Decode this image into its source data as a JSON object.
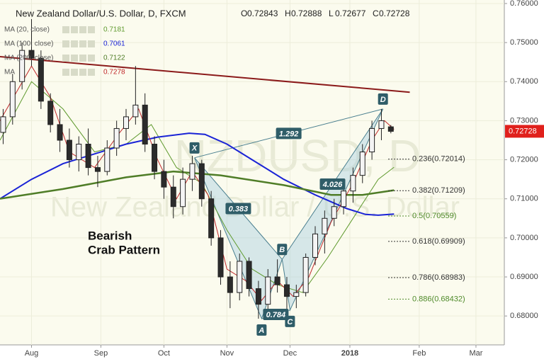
{
  "chart_data": {
    "type": "candlestick",
    "title": "New Zealand Dollar/U.S. Dollar, D, FXCM",
    "ohlc_labels": [
      "O",
      "H",
      "L",
      "C"
    ],
    "ohlc": [
      0.72843,
      0.72888,
      0.72677,
      0.72728
    ],
    "watermark": [
      "NZDUSD, D",
      "New Zealand Dollar / U.S. Dollar"
    ],
    "annotation": [
      "Bearish",
      "Crab Pattern"
    ],
    "xlim": [
      -10,
      150
    ],
    "xticks": [
      {
        "value": 0,
        "label": "Aug"
      },
      {
        "value": 22,
        "label": "Sep"
      },
      {
        "value": 42,
        "label": "Oct"
      },
      {
        "value": 62,
        "label": "Nov"
      },
      {
        "value": 82,
        "label": "Dec"
      },
      {
        "value": 101,
        "label": "2018"
      },
      {
        "value": 123,
        "label": "Feb"
      },
      {
        "value": 141,
        "label": "Mar"
      }
    ],
    "ylim": [
      0.6726,
      0.7609
    ],
    "yticks": [
      {
        "value": 0.68,
        "label": "0.68000"
      },
      {
        "value": 0.69,
        "label": "0.69000"
      },
      {
        "value": 0.7,
        "label": "0.70000"
      },
      {
        "value": 0.71,
        "label": "0.71000"
      },
      {
        "value": 0.72,
        "label": "0.72000"
      },
      {
        "value": 0.73,
        "label": "0.73000"
      },
      {
        "value": 0.74,
        "label": "0.74000"
      },
      {
        "value": 0.75,
        "label": "0.75000"
      },
      {
        "value": 0.76,
        "label": "0.76000"
      }
    ],
    "grid": true,
    "up_color": "#f4f4f4",
    "down_color": "#2b2b2b",
    "x": [
      -9,
      -6,
      -3,
      0,
      3,
      6,
      9,
      12,
      15,
      18,
      21,
      24,
      27,
      30,
      33,
      36,
      39,
      42,
      45,
      48,
      51,
      54,
      57,
      60,
      63,
      66,
      69,
      72,
      75,
      78,
      81,
      84,
      87,
      90,
      93,
      96,
      99,
      102,
      105,
      108,
      111,
      114
    ],
    "open": [
      0.727,
      0.731,
      0.74,
      0.748,
      0.746,
      0.735,
      0.729,
      0.725,
      0.72,
      0.724,
      0.718,
      0.717,
      0.723,
      0.728,
      0.731,
      0.734,
      0.724,
      0.717,
      0.713,
      0.708,
      0.715,
      0.719,
      0.71,
      0.7,
      0.69,
      0.686,
      0.694,
      0.687,
      0.683,
      0.69,
      0.688,
      0.685,
      0.686,
      0.695,
      0.701,
      0.705,
      0.708,
      0.712,
      0.716,
      0.722,
      0.728,
      0.72843
    ],
    "high": [
      0.733,
      0.742,
      0.75,
      0.756,
      0.748,
      0.737,
      0.733,
      0.728,
      0.726,
      0.728,
      0.721,
      0.725,
      0.73,
      0.733,
      0.744,
      0.737,
      0.726,
      0.72,
      0.716,
      0.718,
      0.721,
      0.72,
      0.712,
      0.702,
      0.694,
      0.696,
      0.695,
      0.689,
      0.692,
      0.6945,
      0.69,
      0.688,
      0.696,
      0.703,
      0.707,
      0.71,
      0.713,
      0.718,
      0.724,
      0.73,
      0.733,
      0.72888
    ],
    "low": [
      0.724,
      0.729,
      0.738,
      0.744,
      0.733,
      0.727,
      0.722,
      0.718,
      0.717,
      0.716,
      0.713,
      0.716,
      0.721,
      0.725,
      0.729,
      0.722,
      0.715,
      0.71,
      0.705,
      0.706,
      0.712,
      0.708,
      0.698,
      0.688,
      0.682,
      0.684,
      0.685,
      0.6793,
      0.681,
      0.686,
      0.6815,
      0.682,
      0.685,
      0.693,
      0.696,
      0.703,
      0.706,
      0.709,
      0.714,
      0.72,
      0.725,
      0.72677
    ],
    "close": [
      0.731,
      0.74,
      0.748,
      0.746,
      0.735,
      0.729,
      0.725,
      0.72,
      0.724,
      0.718,
      0.717,
      0.723,
      0.728,
      0.731,
      0.734,
      0.724,
      0.717,
      0.713,
      0.708,
      0.715,
      0.719,
      0.71,
      0.7,
      0.69,
      0.686,
      0.694,
      0.687,
      0.683,
      0.69,
      0.688,
      0.685,
      0.686,
      0.695,
      0.701,
      0.705,
      0.708,
      0.712,
      0.716,
      0.722,
      0.728,
      0.73,
      0.72728
    ],
    "series": [
      {
        "name": "MA (20, close)",
        "current": 0.7181,
        "color": "#5f9a2e",
        "width": 1,
        "x": [
          -10,
          0,
          10,
          20,
          30,
          38,
          46,
          54,
          62,
          70,
          78,
          86,
          94,
          102,
          110,
          115
        ],
        "values": [
          0.725,
          0.74,
          0.733,
          0.722,
          0.724,
          0.729,
          0.718,
          0.714,
          0.702,
          0.692,
          0.688,
          0.686,
          0.695,
          0.705,
          0.715,
          0.7181
        ]
      },
      {
        "name": "MA (100, close)",
        "current": 0.7061,
        "color": "#1a23d6",
        "width": 2,
        "x": [
          -10,
          0,
          10,
          20,
          30,
          40,
          50,
          55,
          62,
          70,
          80,
          90,
          100,
          106,
          110,
          115
        ],
        "values": [
          0.71,
          0.715,
          0.719,
          0.7215,
          0.724,
          0.7258,
          0.7268,
          0.7265,
          0.724,
          0.72,
          0.715,
          0.711,
          0.7075,
          0.706,
          0.7058,
          0.7061
        ]
      },
      {
        "name": "MA (200, close)",
        "current": 0.7122,
        "color": "#4f7d27",
        "width": 2.5,
        "x": [
          -10,
          10,
          30,
          45,
          60,
          80,
          95,
          105,
          115
        ],
        "values": [
          0.71,
          0.7125,
          0.7155,
          0.717,
          0.716,
          0.7135,
          0.711,
          0.711,
          0.7122
        ]
      },
      {
        "name": "MA",
        "current": 0.7278,
        "color": "#c0282b",
        "width": 1,
        "x": [
          -10,
          0,
          6,
          12,
          20,
          28,
          34,
          40,
          46,
          51,
          56,
          62,
          68,
          73,
          78,
          83,
          88,
          95,
          102,
          108,
          112,
          115
        ],
        "values": [
          0.73,
          0.744,
          0.736,
          0.722,
          0.718,
          0.727,
          0.733,
          0.72,
          0.71,
          0.717,
          0.711,
          0.692,
          0.689,
          0.684,
          0.689,
          0.685,
          0.69,
          0.704,
          0.714,
          0.725,
          0.73,
          0.7278
        ]
      }
    ],
    "trendline": {
      "color": "#8b1a1a",
      "x": [
        -10,
        120
      ],
      "values": [
        0.7464,
        0.7373
      ]
    },
    "pattern": {
      "points": [
        {
          "label": "X",
          "x": 51.7,
          "value": 0.7205
        },
        {
          "label": "A",
          "x": 73,
          "value": 0.6793
        },
        {
          "label": "B",
          "x": 79.5,
          "value": 0.6945
        },
        {
          "label": "C",
          "x": 82,
          "value": 0.6815
        },
        {
          "label": "D",
          "x": 111.5,
          "value": 0.733
        }
      ],
      "ratios": [
        1.292,
        0.383,
        4.026,
        0.784
      ]
    },
    "fib_levels": [
      {
        "value": 0.72014,
        "label": "0.236(0.72014)",
        "color": "#333333"
      },
      {
        "value": 0.71209,
        "label": "0.382(0.71209)",
        "color": "#333333"
      },
      {
        "value": 0.70559,
        "label": "0.5(0.70559)",
        "color": "#4f8a2a"
      },
      {
        "value": 0.69909,
        "label": "0.618(0.69909)",
        "color": "#333333"
      },
      {
        "value": 0.68983,
        "label": "0.786(0.68983)",
        "color": "#333333"
      },
      {
        "value": 0.68432,
        "label": "0.886(0.68432)",
        "color": "#4f8a2a"
      }
    ],
    "last_price_color": "#e0201c"
  }
}
